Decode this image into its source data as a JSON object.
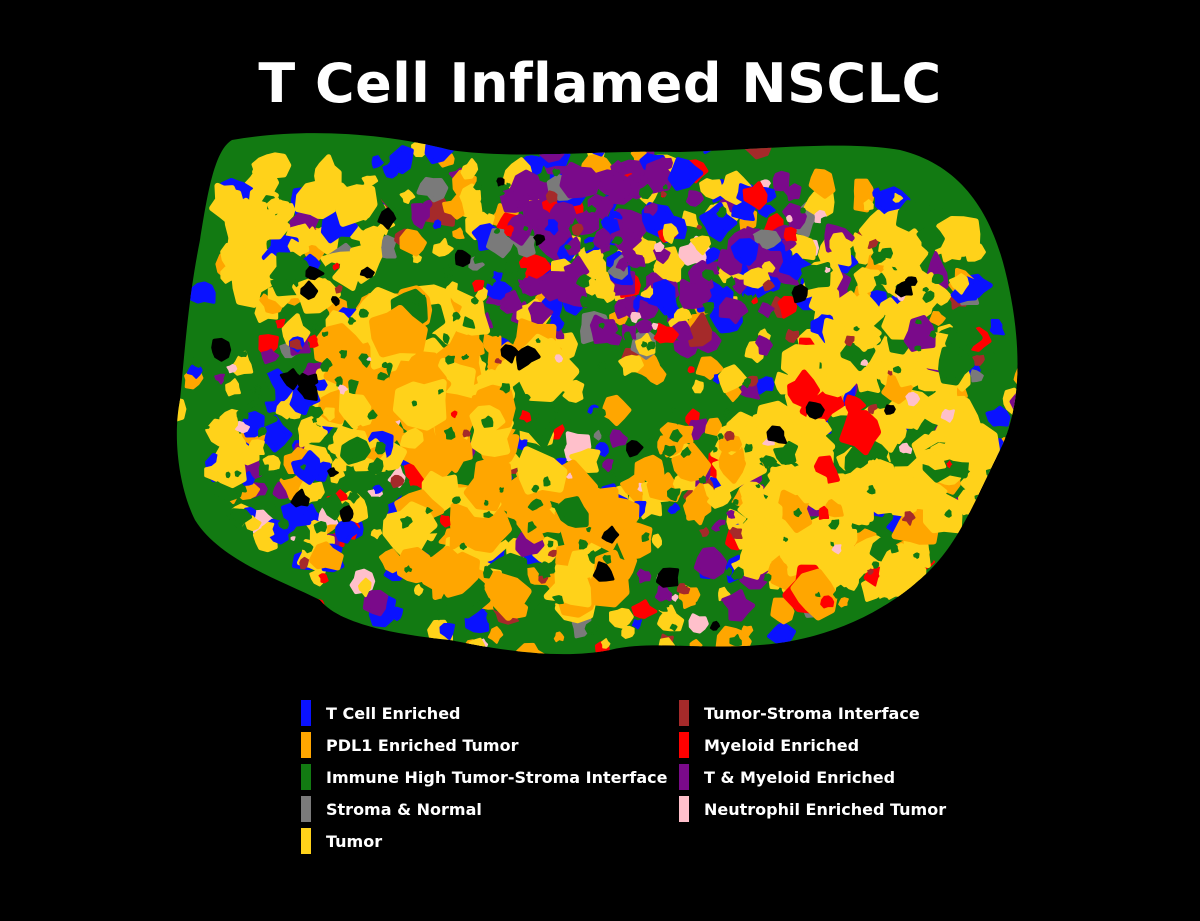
{
  "title": "T Cell Inflamed NSCLC",
  "legend": {
    "left": [
      {
        "label": "T Cell Enriched",
        "color": "#0a12ff"
      },
      {
        "label": "PDL1 Enriched Tumor",
        "color": "#ffa600"
      },
      {
        "label": "Immune High Tumor-Stroma Interface",
        "color": "#127a12"
      },
      {
        "label": "Stroma & Normal",
        "color": "#7a7a7a"
      },
      {
        "label": "Tumor",
        "color": "#ffd21a"
      }
    ],
    "right": [
      {
        "label": "Tumor-Stroma Interface",
        "color": "#a52a2a"
      },
      {
        "label": "Myeloid Enriched",
        "color": "#ff0000"
      },
      {
        "label": "T & Myeloid Enriched",
        "color": "#7a0a8a"
      },
      {
        "label": "Neutrophil Enriched Tumor",
        "color": "#ffc0cb"
      }
    ]
  }
}
